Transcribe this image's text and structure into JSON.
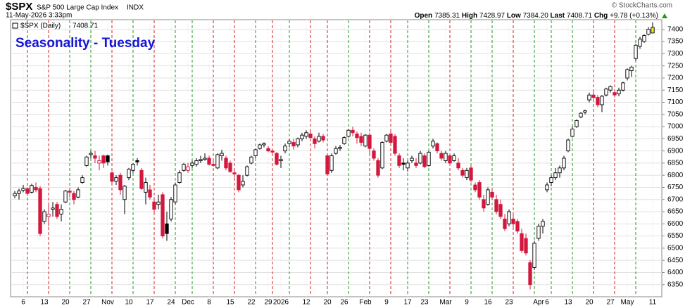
{
  "chart_data": {
    "type": "candlestick",
    "symbol": "$SPX",
    "name": "S&P 500 Large Cap Index",
    "exchange": "INDX",
    "datetime": "11-May-2026 3:33pm",
    "title": "Seasonality - Tuesday",
    "legend": "$SPX (Daily)",
    "copyright": "© StockCharts.com",
    "quote_names": {
      "open": "Open",
      "high": "High",
      "low": "Low",
      "last": "Last",
      "change": "Chg"
    },
    "quote_labels": {
      "open": "7385.31",
      "high": "7428.97",
      "low": "7384.20",
      "last": "7408.71",
      "change": "+9.78 (+0.13%)"
    },
    "categories": [
      null,
      null,
      "6",
      null,
      null,
      null,
      null,
      "13",
      null,
      null,
      null,
      null,
      "20",
      null,
      null,
      null,
      null,
      "27",
      null,
      null,
      null,
      null,
      "Nov",
      null,
      null,
      null,
      null,
      "10",
      null,
      null,
      null,
      null,
      "17",
      null,
      null,
      null,
      null,
      "24",
      null,
      null,
      null,
      "Dec",
      null,
      null,
      null,
      null,
      "8",
      null,
      null,
      null,
      null,
      "15",
      null,
      null,
      null,
      null,
      "22",
      null,
      null,
      null,
      "29",
      null,
      null,
      "2026",
      null,
      null,
      null,
      null,
      null,
      "12",
      null,
      null,
      null,
      null,
      "20",
      null,
      null,
      null,
      "26",
      null,
      null,
      null,
      null,
      "Feb",
      null,
      null,
      null,
      null,
      "9",
      null,
      null,
      null,
      null,
      "17",
      null,
      null,
      null,
      "23",
      null,
      null,
      null,
      null,
      "Mar",
      null,
      null,
      null,
      null,
      "9",
      null,
      null,
      null,
      null,
      "16",
      null,
      null,
      null,
      null,
      "23",
      null,
      null,
      null,
      null,
      null,
      null,
      "Apr",
      null,
      "6",
      null,
      null,
      null,
      null,
      "13",
      null,
      null,
      null,
      null,
      "20",
      null,
      null,
      null,
      null,
      "27",
      null,
      null,
      null,
      "May",
      null,
      null,
      null,
      null,
      null,
      "11"
    ],
    "open": [
      6715,
      6725,
      6738,
      6745,
      6730,
      6750,
      6745,
      6610,
      6630,
      6660,
      6680,
      6640,
      6690,
      6735,
      6725,
      6710,
      6770,
      6840,
      6885,
      6880,
      6850,
      6880,
      6880,
      6810,
      6775,
      6800,
      6700,
      6790,
      6820,
      6860,
      6820,
      6730,
      6740,
      6690,
      6680,
      6720,
      6600,
      6620,
      6690,
      6770,
      6820,
      6820,
      6840,
      6845,
      6860,
      6865,
      6870,
      6845,
      6830,
      6880,
      6870,
      6850,
      6810,
      6800,
      6760,
      6800,
      6850,
      6880,
      6910,
      6925,
      6910,
      6900,
      6890,
      6860,
      6900,
      6930,
      6935,
      6925,
      6950,
      6960,
      6970,
      6950,
      6940,
      6960,
      6880,
      6820,
      6890,
      6910,
      6930,
      6960,
      6985,
      6970,
      6960,
      6920,
      6965,
      6900,
      6860,
      6830,
      6940,
      6970,
      6960,
      6880,
      6850,
      6830,
      6860,
      6850,
      6850,
      6880,
      6840,
      6920,
      6930,
      6890,
      6860,
      6880,
      6860,
      6850,
      6820,
      6790,
      6830,
      6760,
      6770,
      6700,
      6680,
      6730,
      6700,
      6680,
      6620,
      6600,
      6620,
      6610,
      6560,
      6540,
      6440,
      6420,
      6540,
      6590,
      6740,
      6770,
      6790,
      6810,
      6830,
      6900,
      6960,
      7000,
      7040,
      7060,
      7110,
      7130,
      7120,
      7090,
      7130,
      7150,
      7140,
      7135,
      7150,
      7200,
      7230,
      7280,
      7330,
      7350,
      7380,
      7385.31
    ],
    "high": [
      6735,
      6745,
      6760,
      6750,
      6765,
      6770,
      6755,
      6660,
      6680,
      6690,
      6690,
      6680,
      6740,
      6745,
      6735,
      6750,
      6800,
      6880,
      6900,
      6900,
      6880,
      6885,
      6885,
      6815,
      6800,
      6810,
      6760,
      6830,
      6850,
      6870,
      6830,
      6790,
      6760,
      6710,
      6720,
      6730,
      6650,
      6710,
      6770,
      6820,
      6850,
      6850,
      6860,
      6870,
      6880,
      6890,
      6880,
      6860,
      6890,
      6905,
      6880,
      6860,
      6830,
      6805,
      6800,
      6840,
      6880,
      6910,
      6930,
      6935,
      6920,
      6910,
      6895,
      6880,
      6930,
      6950,
      6950,
      6955,
      6975,
      6985,
      6980,
      6960,
      6975,
      6970,
      6890,
      6890,
      6920,
      6925,
      6960,
      6990,
      7000,
      6980,
      6975,
      6970,
      6975,
      6910,
      6870,
      6940,
      6970,
      6980,
      6970,
      6890,
      6870,
      6860,
      6880,
      6870,
      6900,
      6890,
      6900,
      6950,
      6935,
      6900,
      6900,
      6890,
      6890,
      6870,
      6830,
      6830,
      6840,
      6770,
      6780,
      6720,
      6750,
      6745,
      6720,
      6700,
      6640,
      6660,
      6640,
      6620,
      6580,
      6560,
      6450,
      6530,
      6600,
      6620,
      6770,
      6800,
      6830,
      6840,
      6880,
      6950,
      7000,
      7030,
      7060,
      7070,
      7140,
      7150,
      7130,
      7130,
      7160,
      7170,
      7150,
      7160,
      7185,
      7240,
      7250,
      7340,
      7370,
      7380,
      7410,
      7428.97
    ],
    "low": [
      6705,
      6700,
      6730,
      6715,
      6725,
      6730,
      6550,
      6600,
      6590,
      6630,
      6620,
      6610,
      6685,
      6710,
      6680,
      6705,
      6765,
      6835,
      6870,
      6850,
      6820,
      6830,
      6840,
      6760,
      6760,
      6720,
      6640,
      6780,
      6810,
      6840,
      6740,
      6680,
      6700,
      6640,
      6660,
      6540,
      6530,
      6610,
      6680,
      6765,
      6815,
      6810,
      6830,
      6835,
      6850,
      6860,
      6840,
      6835,
      6825,
      6860,
      6820,
      6810,
      6790,
      6730,
      6750,
      6795,
      6845,
      6870,
      6905,
      6915,
      6895,
      6890,
      6840,
      6830,
      6890,
      6915,
      6905,
      6915,
      6940,
      6950,
      6945,
      6910,
      6935,
      6935,
      6800,
      6810,
      6885,
      6900,
      6925,
      6955,
      6960,
      6930,
      6920,
      6915,
      6890,
      6860,
      6790,
      6825,
      6935,
      6930,
      6880,
      6830,
      6820,
      6815,
      6850,
      6830,
      6845,
      6830,
      6835,
      6910,
      6890,
      6860,
      6850,
      6840,
      6855,
      6820,
      6790,
      6780,
      6770,
      6730,
      6700,
      6650,
      6675,
      6700,
      6640,
      6620,
      6570,
      6590,
      6580,
      6560,
      6480,
      6470,
      6330,
      6410,
      6530,
      6560,
      6730,
      6755,
      6780,
      6790,
      6820,
      6895,
      6955,
      6995,
      7035,
      7050,
      7100,
      7110,
      7080,
      7060,
      7125,
      7140,
      7120,
      7125,
      7145,
      7190,
      7205,
      7270,
      7320,
      7345,
      7375,
      7384.2
    ],
    "close": [
      6725,
      6735,
      6745,
      6725,
      6758,
      6740,
      6560,
      6650,
      6640,
      6665,
      6630,
      6660,
      6735,
      6730,
      6700,
      6740,
      6790,
      6875,
      6890,
      6870,
      6860,
      6850,
      6855,
      6775,
      6790,
      6740,
      6755,
      6825,
      6845,
      6855,
      6745,
      6770,
      6710,
      6660,
      6690,
      6550,
      6560,
      6700,
      6760,
      6810,
      6845,
      6835,
      6850,
      6860,
      6865,
      6870,
      6845,
      6840,
      6885,
      6890,
      6830,
      6815,
      6805,
      6740,
      6775,
      6835,
      6875,
      6905,
      6925,
      6930,
      6900,
      6895,
      6845,
      6865,
      6920,
      6940,
      6920,
      6950,
      6965,
      6975,
      6955,
      6930,
      6960,
      6945,
      6805,
      6880,
      6910,
      6915,
      6955,
      6985,
      6975,
      6955,
      6935,
      6965,
      6910,
      6870,
      6800,
      6935,
      6965,
      6935,
      6890,
      6840,
      6845,
      6850,
      6870,
      6840,
      6890,
      6835,
      6895,
      6940,
      6900,
      6870,
      6890,
      6850,
      6880,
      6830,
      6800,
      6820,
      6780,
      6740,
      6710,
      6665,
      6740,
      6710,
      6650,
      6630,
      6580,
      6650,
      6600,
      6570,
      6490,
      6480,
      6350,
      6520,
      6590,
      6610,
      6760,
      6790,
      6810,
      6830,
      6870,
      6945,
      6990,
      7025,
      7055,
      7065,
      7130,
      7120,
      7090,
      7125,
      7155,
      7165,
      7130,
      7150,
      7180,
      7235,
      7245,
      7335,
      7360,
      7375,
      7400,
      7408.71
    ],
    "session_marks": [
      null,
      null,
      null,
      "r",
      null,
      null,
      null,
      null,
      "r",
      null,
      null,
      null,
      null,
      "g",
      null,
      null,
      null,
      null,
      "g",
      null,
      null,
      null,
      null,
      "r",
      null,
      null,
      null,
      null,
      "g",
      null,
      null,
      null,
      null,
      "r",
      null,
      null,
      null,
      null,
      "g",
      null,
      null,
      null,
      "g",
      null,
      null,
      null,
      null,
      "r",
      null,
      null,
      null,
      null,
      "r",
      null,
      null,
      null,
      null,
      "g",
      null,
      null,
      null,
      "r",
      null,
      null,
      null,
      "g",
      null,
      null,
      null,
      null,
      "r",
      null,
      null,
      null,
      "r",
      null,
      null,
      null,
      null,
      "g",
      null,
      null,
      null,
      null,
      "r",
      null,
      null,
      null,
      null,
      "r",
      null,
      null,
      null,
      "g",
      null,
      null,
      null,
      null,
      "g",
      null,
      null,
      null,
      null,
      "r",
      null,
      null,
      null,
      null,
      "g",
      null,
      null,
      null,
      null,
      "g",
      null,
      null,
      null,
      null,
      "r",
      null,
      null,
      null,
      null,
      "g",
      null,
      null,
      null,
      "g",
      null,
      null,
      null,
      null,
      "g",
      null,
      null,
      null,
      null,
      "r",
      null,
      null,
      null,
      null,
      "r",
      null,
      null,
      null,
      null,
      "g",
      null,
      null,
      null,
      null
    ],
    "mark_colors": {
      "r": "#d81e1e",
      "g": "#1f9a1f"
    },
    "up_color": "#000000",
    "down_color": "#d3173d",
    "last_fill": "#f3e51c",
    "ylim": [
      6300,
      7440
    ],
    "yticks": [
      6350,
      6400,
      6450,
      6500,
      6550,
      6600,
      6650,
      6700,
      6750,
      6800,
      6850,
      6900,
      6950,
      7000,
      7050,
      7100,
      7150,
      7200,
      7250,
      7300,
      7350,
      7400
    ],
    "grid": true
  }
}
